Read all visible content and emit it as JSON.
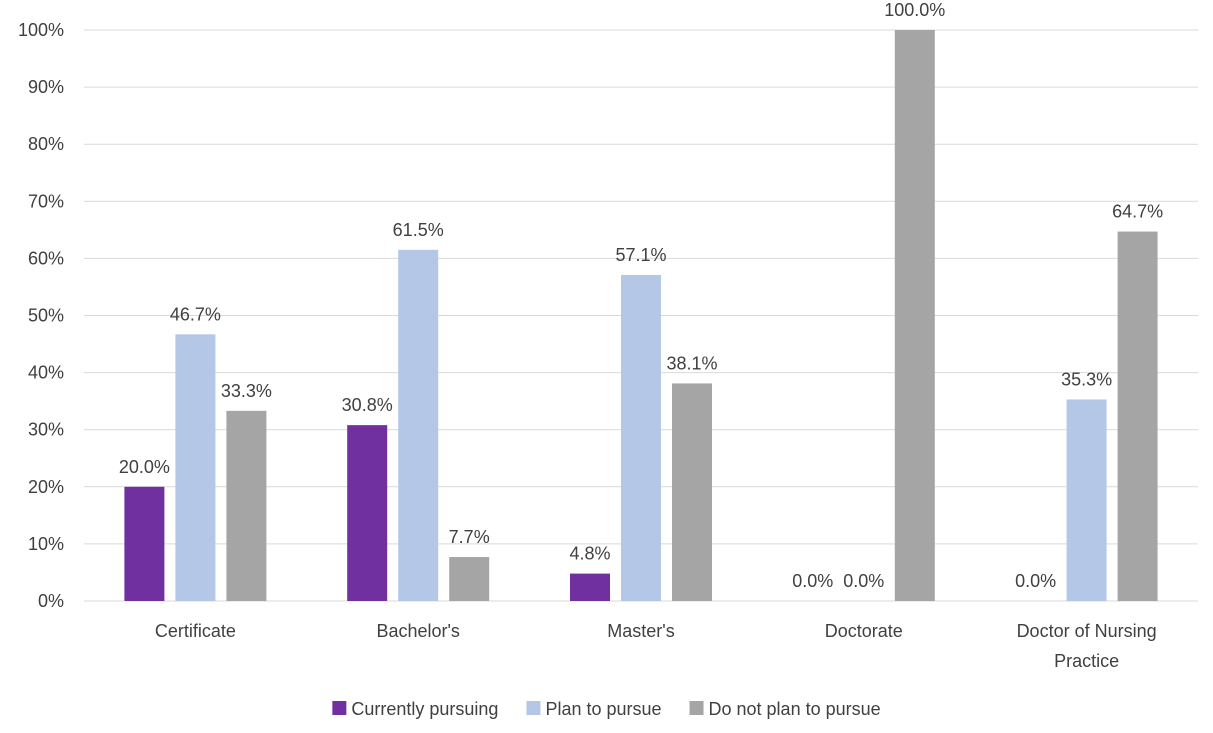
{
  "chart_data": {
    "type": "bar",
    "title": "",
    "xlabel": "",
    "ylabel": "",
    "categories": [
      [
        "Certificate"
      ],
      [
        "Bachelor's"
      ],
      [
        "Master's"
      ],
      [
        "Doctorate"
      ],
      [
        "Doctor of Nursing",
        "Practice"
      ]
    ],
    "series": [
      {
        "name": "Currently pursuing",
        "color": "#7030a0",
        "values": [
          20.0,
          30.8,
          4.8,
          0.0,
          0.0
        ],
        "labels": [
          "20.0%",
          "30.8%",
          "4.8%",
          "0.0%",
          "0.0%"
        ]
      },
      {
        "name": "Plan to pursue",
        "color": "#b4c7e7",
        "values": [
          46.7,
          61.5,
          57.1,
          0.0,
          35.3
        ],
        "labels": [
          "46.7%",
          "61.5%",
          "57.1%",
          "0.0%",
          "35.3%"
        ]
      },
      {
        "name": "Do not plan to pursue",
        "color": "#a5a5a5",
        "values": [
          33.3,
          7.7,
          38.1,
          100.0,
          64.7
        ],
        "labels": [
          "33.3%",
          "7.7%",
          "38.1%",
          "100.0%",
          "64.7%"
        ]
      }
    ],
    "ylim": [
      0,
      100
    ],
    "yticks": [
      0,
      10,
      20,
      30,
      40,
      50,
      60,
      70,
      80,
      90,
      100
    ],
    "ytick_labels": [
      "0%",
      "10%",
      "20%",
      "30%",
      "40%",
      "50%",
      "60%",
      "70%",
      "80%",
      "90%",
      "100%"
    ],
    "grid": true,
    "legend": "bottom",
    "gridline_color": "#d9d9d9"
  }
}
